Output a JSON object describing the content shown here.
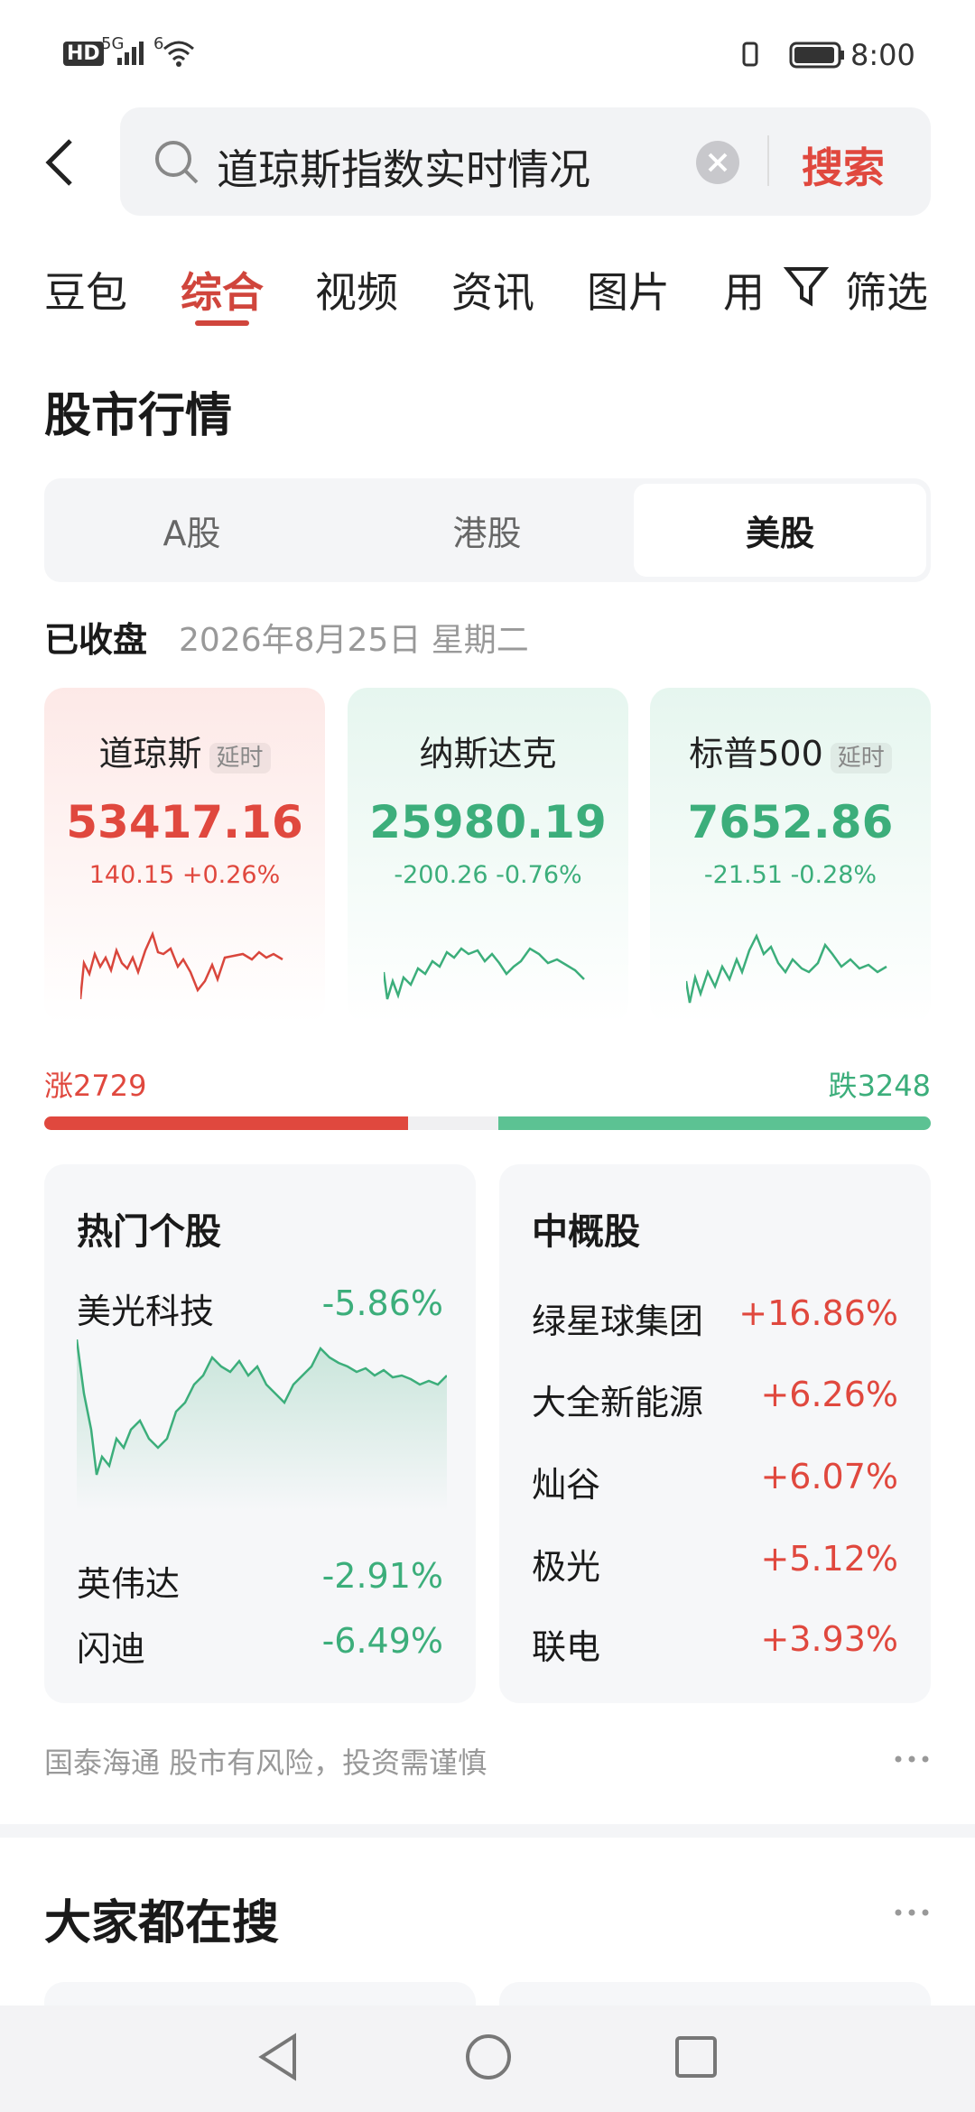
{
  "status_bar": {
    "hd": "HD",
    "signal": "5G",
    "wifi": "6",
    "time": "8:00"
  },
  "search": {
    "query": "道琼斯指数实时情况",
    "button": "搜索"
  },
  "tabs": [
    "豆包",
    "综合",
    "视频",
    "资讯",
    "图片",
    "用"
  ],
  "filter": "筛选",
  "section_title": "股市行情",
  "market_tabs": [
    "A股",
    "港股",
    "美股"
  ],
  "market_status": {
    "label": "已收盘",
    "date": "2026年8月25日 星期二"
  },
  "indices": [
    {
      "name": "道琼斯",
      "tag": "延时",
      "value": "53417.16",
      "change": "140.15",
      "percent": "+0.26%"
    },
    {
      "name": "纳斯达克",
      "value": "25980.19",
      "change": "-200.26",
      "percent": "-0.76%"
    },
    {
      "name": "标普500",
      "tag": "延时",
      "value": "7652.86",
      "change": "-21.51",
      "percent": "-0.28%"
    }
  ],
  "breadth": {
    "up_label": "涨",
    "up_count": 2729,
    "down_label": "跌",
    "down_count": 3248
  },
  "hot_stocks": {
    "title": "热门个股",
    "items": [
      {
        "name": "美光科技",
        "change": "-5.86%"
      },
      {
        "name": "英伟达",
        "change": "-2.91%"
      },
      {
        "name": "闪迪",
        "change": "-6.49%"
      }
    ]
  },
  "china_concepts": {
    "title": "中概股",
    "items": [
      {
        "name": "绿星球集团",
        "change": "+16.86%"
      },
      {
        "name": "大全新能源",
        "change": "+6.26%"
      },
      {
        "name": "灿谷",
        "change": "+6.07%"
      },
      {
        "name": "极光",
        "change": "+5.12%"
      },
      {
        "name": "联电",
        "change": "+3.93%"
      }
    ]
  },
  "disclaimer": "国泰海通 股市有风险，投资需谨慎",
  "trending_title": "大家都在搜"
}
